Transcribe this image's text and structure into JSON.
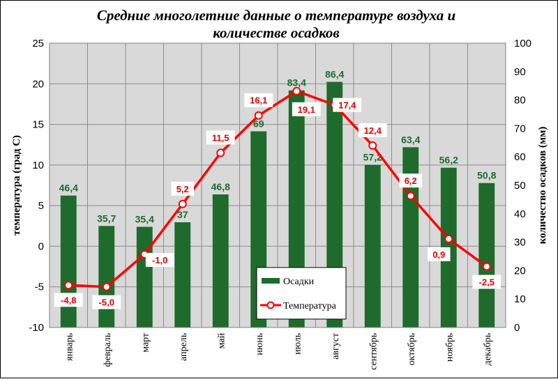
{
  "chart_data": {
    "type": "bar+line",
    "title_lines": [
      "Средние многолетние данные о температуре воздуха и",
      "количестве осадков"
    ],
    "categories": [
      "январь",
      "февраль",
      "март",
      "апрель",
      "май",
      "июнь",
      "июль",
      "август",
      "сентябрь",
      "октябрь",
      "ноябрь",
      "декабрь"
    ],
    "series": [
      {
        "name": "Осадки",
        "type": "bar",
        "axis": "right",
        "values": [
          46.4,
          35.7,
          35.4,
          37,
          46.8,
          69,
          83.4,
          86.4,
          57.2,
          63.4,
          56.2,
          50.8
        ],
        "labels": [
          "46,4",
          "35,7",
          "35,4",
          "37",
          "46,8",
          "69",
          "83,4",
          "86,4",
          "57,2",
          "63,4",
          "56,2",
          "50,8"
        ],
        "color": "#1e6b2c"
      },
      {
        "name": "Температура",
        "type": "line",
        "axis": "left",
        "values": [
          -4.8,
          -5.0,
          -1.0,
          5.2,
          11.5,
          16.1,
          19.1,
          17.4,
          12.4,
          6.2,
          0.9,
          -2.5
        ],
        "labels": [
          "-4,8",
          "-5,0",
          "-1,0",
          "5,2",
          "11,5",
          "16,1",
          "19,1",
          "17,4",
          "12,4",
          "6,2",
          "0,9",
          "-2,5"
        ],
        "color": "#ff0000"
      }
    ],
    "ylabel_left": "температура  (град С)",
    "ylabel_right": "количество осадков (мм)",
    "ylim_left": [
      -10,
      25
    ],
    "ylim_right": [
      0,
      100
    ],
    "yticks_left": [
      "-10",
      "-5",
      "0",
      "5",
      "10",
      "15",
      "20",
      "25"
    ],
    "yticks_right": [
      "0",
      "10",
      "20",
      "30",
      "40",
      "50",
      "60",
      "70",
      "80",
      "90",
      "100"
    ],
    "grid": true,
    "plot_background": "#d9d9d9",
    "legend_position": "bottom-center-inside"
  }
}
